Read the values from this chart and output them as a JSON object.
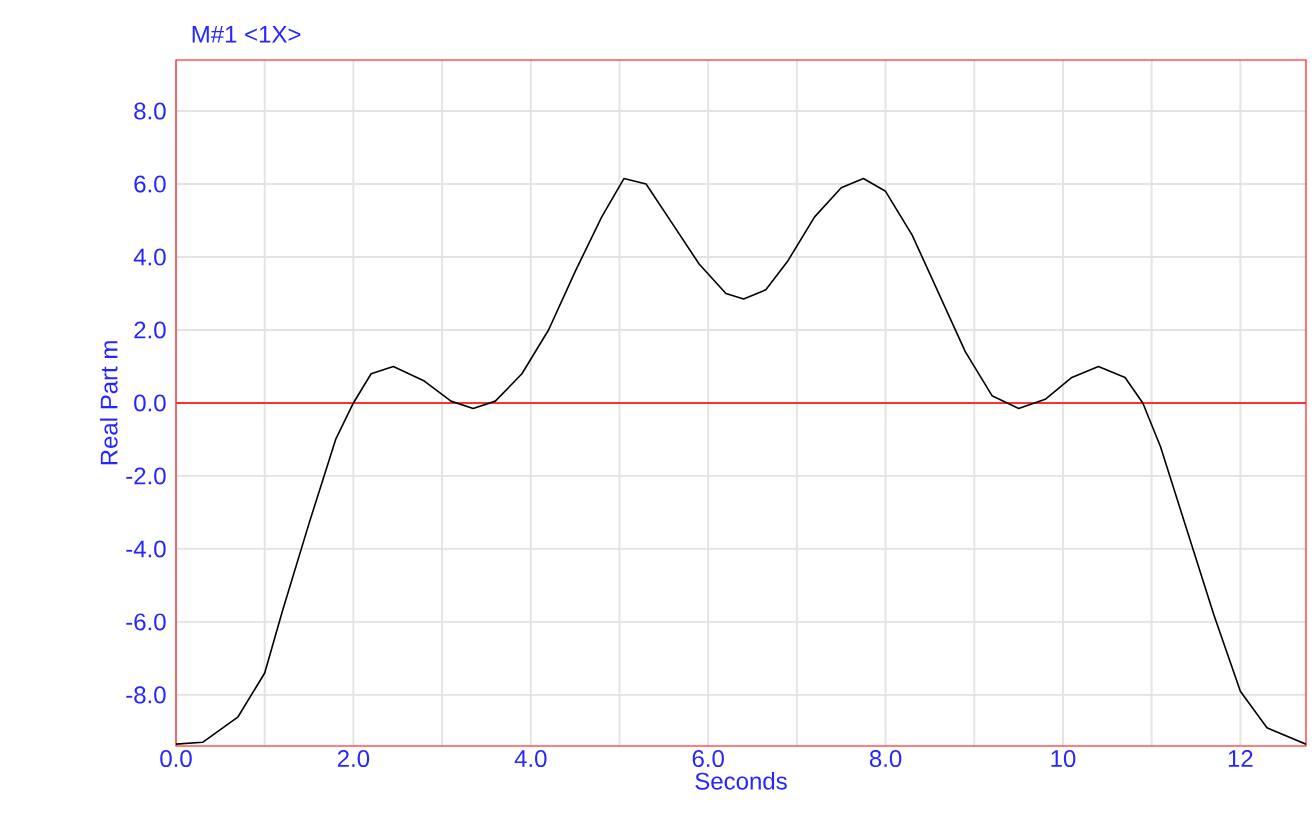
{
  "chart_data": {
    "type": "line",
    "title": "M#1  <1X>",
    "xlabel": "Seconds",
    "ylabel": "Real Part m",
    "xlim": [
      0,
      12.74
    ],
    "ylim": [
      -9.4,
      9.4
    ],
    "xticks": [
      {
        "value": 0,
        "label": "0.0"
      },
      {
        "value": 1,
        "label": null
      },
      {
        "value": 2,
        "label": "2.0"
      },
      {
        "value": 3,
        "label": null
      },
      {
        "value": 4,
        "label": "4.0"
      },
      {
        "value": 5,
        "label": null
      },
      {
        "value": 6,
        "label": "6.0"
      },
      {
        "value": 7,
        "label": null
      },
      {
        "value": 8,
        "label": "8.0"
      },
      {
        "value": 9,
        "label": null
      },
      10,
      {
        "value": 11,
        "label": null
      },
      12
    ],
    "yticks": [
      {
        "value": -8,
        "label": "-8.0"
      },
      {
        "value": -6,
        "label": "-6.0"
      },
      {
        "value": -4,
        "label": "-4.0"
      },
      {
        "value": -2,
        "label": "-2.0"
      },
      {
        "value": 0,
        "label": "0.0"
      },
      {
        "value": 2,
        "label": "2.0"
      },
      {
        "value": 4,
        "label": "4.0"
      },
      {
        "value": 6,
        "label": "6.0"
      },
      {
        "value": 8,
        "label": "8.0"
      }
    ],
    "grid": true,
    "ref_lines": [
      {
        "axis": "y",
        "value": 0,
        "color": "#ff3030"
      }
    ],
    "series": [
      {
        "color": "#000000",
        "x": [
          0,
          0.3,
          0.7,
          1.0,
          1.2,
          1.5,
          1.8,
          2.0,
          2.2,
          2.45,
          2.8,
          3.1,
          3.35,
          3.6,
          3.9,
          4.2,
          4.5,
          4.8,
          5.05,
          5.3,
          5.6,
          5.9,
          6.2,
          6.4,
          6.65,
          6.9,
          7.2,
          7.5,
          7.75,
          8.0,
          8.3,
          8.6,
          8.9,
          9.2,
          9.5,
          9.8,
          10.1,
          10.4,
          10.7,
          10.9,
          11.1,
          11.4,
          11.7,
          12.0,
          12.3,
          12.74
        ],
        "values": [
          -9.35,
          -9.3,
          -8.6,
          -7.4,
          -5.7,
          -3.3,
          -1.0,
          0,
          0.8,
          1.0,
          0.6,
          0.05,
          -0.15,
          0.05,
          0.8,
          2.0,
          3.6,
          5.1,
          6.15,
          6.0,
          4.9,
          3.8,
          3.0,
          2.85,
          3.1,
          3.9,
          5.1,
          5.9,
          6.15,
          5.8,
          4.6,
          3.0,
          1.4,
          0.2,
          -0.15,
          0.1,
          0.7,
          1.0,
          0.7,
          0.0,
          -1.2,
          -3.5,
          -5.8,
          -7.9,
          -8.9,
          -9.35
        ]
      }
    ]
  }
}
